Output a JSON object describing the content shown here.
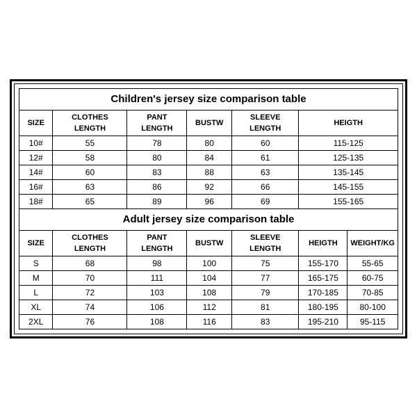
{
  "children": {
    "title": "Children's jersey size comparison table",
    "columns": [
      "SIZE",
      "CLOTHES LENGTH",
      "PANT LENGTH",
      "BUSTW",
      "SLEEVE LENGTH",
      "HEIGTH"
    ],
    "rows": [
      [
        "10#",
        "55",
        "78",
        "80",
        "60",
        "115-125"
      ],
      [
        "12#",
        "58",
        "80",
        "84",
        "61",
        "125-135"
      ],
      [
        "14#",
        "60",
        "83",
        "88",
        "63",
        "135-145"
      ],
      [
        "16#",
        "63",
        "86",
        "92",
        "66",
        "145-155"
      ],
      [
        "18#",
        "65",
        "89",
        "96",
        "69",
        "155-165"
      ]
    ]
  },
  "adult": {
    "title": "Adult jersey size comparison table",
    "columns": [
      "SIZE",
      "CLOTHES LENGTH",
      "PANT LENGTH",
      "BUSTW",
      "SLEEVE LENGTH",
      "HEIGTH",
      "WEIGHT/KG"
    ],
    "rows": [
      [
        "S",
        "68",
        "98",
        "100",
        "75",
        "155-170",
        "55-65"
      ],
      [
        "M",
        "70",
        "111",
        "104",
        "77",
        "165-175",
        "60-75"
      ],
      [
        "L",
        "72",
        "103",
        "108",
        "79",
        "170-185",
        "70-85"
      ],
      [
        "XL",
        "74",
        "106",
        "112",
        "81",
        "180-195",
        "80-100"
      ],
      [
        "2XL",
        "76",
        "108",
        "116",
        "83",
        "195-210",
        "95-115"
      ]
    ]
  }
}
